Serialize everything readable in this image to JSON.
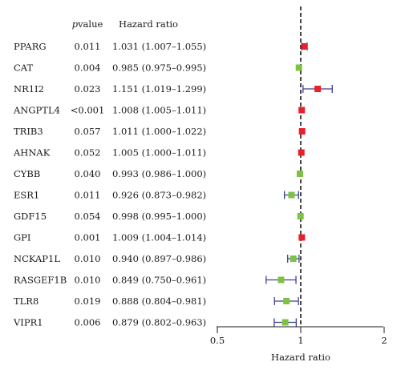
{
  "headers": {
    "p_italic": "p",
    "p_rest": "value",
    "hr": "Hazard ratio"
  },
  "axis": {
    "ticks": [
      "0.5",
      "1",
      "2"
    ],
    "label": "Hazard ratio"
  },
  "colors": {
    "increase": "#e8202a",
    "decrease": "#7dc243",
    "ci": "#3b3f94",
    "ref": "#1a1a1a"
  },
  "chart_data": {
    "type": "forest",
    "xlabel": "Hazard ratio",
    "xscale": "log2",
    "xlim": [
      0.5,
      2
    ],
    "xticks": [
      0.5,
      1,
      2
    ],
    "reference_line": 1,
    "rows": [
      {
        "gene": "PPARG",
        "p": "0.011",
        "hr_text": "1.031 (1.007–1.055)",
        "hr": 1.031,
        "lo": 1.007,
        "hi": 1.055
      },
      {
        "gene": "CAT",
        "p": "0.004",
        "hr_text": "0.985 (0.975–0.995)",
        "hr": 0.985,
        "lo": 0.975,
        "hi": 0.995
      },
      {
        "gene": "NR1I2",
        "p": "0.023",
        "hr_text": "1.151 (1.019–1.299)",
        "hr": 1.151,
        "lo": 1.019,
        "hi": 1.299
      },
      {
        "gene": "ANGPTL4",
        "p": "<0.001",
        "hr_text": "1.008 (1.005–1.011)",
        "hr": 1.008,
        "lo": 1.005,
        "hi": 1.011
      },
      {
        "gene": "TRIB3",
        "p": "0.057",
        "hr_text": "1.011 (1.000–1.022)",
        "hr": 1.011,
        "lo": 1.0,
        "hi": 1.022
      },
      {
        "gene": "AHNAK",
        "p": "0.052",
        "hr_text": "1.005 (1.000–1.011)",
        "hr": 1.005,
        "lo": 1.0,
        "hi": 1.011
      },
      {
        "gene": "CYBB",
        "p": "0.040",
        "hr_text": "0.993 (0.986–1.000)",
        "hr": 0.993,
        "lo": 0.986,
        "hi": 1.0
      },
      {
        "gene": "ESR1",
        "p": "0.011",
        "hr_text": "0.926 (0.873–0.982)",
        "hr": 0.926,
        "lo": 0.873,
        "hi": 0.982
      },
      {
        "gene": "GDF15",
        "p": "0.054",
        "hr_text": "0.998 (0.995–1.000)",
        "hr": 0.998,
        "lo": 0.995,
        "hi": 1.0
      },
      {
        "gene": "GPI",
        "p": "0.001",
        "hr_text": "1.009 (1.004–1.014)",
        "hr": 1.009,
        "lo": 1.004,
        "hi": 1.014
      },
      {
        "gene": "NCKAP1L",
        "p": "0.010",
        "hr_text": "0.940 (0.897–0.986)",
        "hr": 0.94,
        "lo": 0.897,
        "hi": 0.986
      },
      {
        "gene": "RASGEF1B",
        "p": "0.010",
        "hr_text": "0.849 (0.750–0.961)",
        "hr": 0.849,
        "lo": 0.75,
        "hi": 0.961
      },
      {
        "gene": "TLR8",
        "p": "0.019",
        "hr_text": "0.888 (0.804–0.981)",
        "hr": 0.888,
        "lo": 0.804,
        "hi": 0.981
      },
      {
        "gene": "VIPR1",
        "p": "0.006",
        "hr_text": "0.879 (0.802–0.963)",
        "hr": 0.879,
        "lo": 0.802,
        "hi": 0.963
      }
    ]
  }
}
